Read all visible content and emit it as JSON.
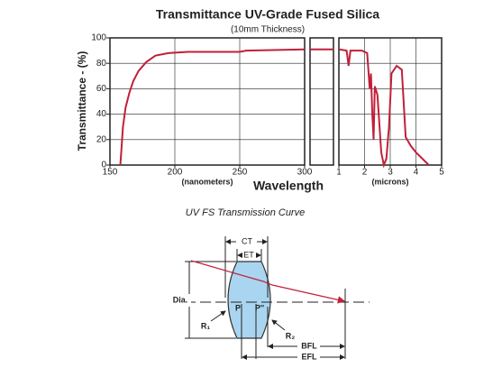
{
  "chart_data": {
    "type": "line",
    "title": "Transmittance UV-Grade Fused Silica",
    "subtitle": "(10mm Thickness)",
    "ylabel": "Transmittance - (%)",
    "xlabel": "Wavelength",
    "ylim": [
      0,
      100
    ],
    "yticks": [
      0,
      20,
      40,
      60,
      80,
      100
    ],
    "grid": true,
    "color": "#c0203a",
    "panels": [
      {
        "xunit": "(nanometers)",
        "xlim": [
          150,
          300
        ],
        "xticks": [
          150,
          200,
          250,
          300
        ],
        "x": [
          158,
          159,
          160,
          162,
          165,
          168,
          172,
          178,
          185,
          195,
          210,
          250,
          255,
          300
        ],
        "values": [
          0,
          15,
          30,
          45,
          57,
          66,
          74,
          81,
          86,
          88,
          89,
          89,
          90,
          91
        ]
      },
      {
        "values": [
          91,
          91,
          91,
          91
        ]
      },
      {
        "xunit": "(microns)",
        "xlim": [
          1,
          5
        ],
        "xticks": [
          1,
          2,
          3,
          4,
          5
        ],
        "x": [
          1.0,
          1.3,
          1.38,
          1.45,
          1.9,
          2.1,
          2.2,
          2.25,
          2.3,
          2.35,
          2.4,
          2.5,
          2.65,
          2.75,
          2.85,
          2.95,
          3.05,
          3.25,
          3.45,
          3.6,
          3.8,
          4.0,
          4.5
        ],
        "values": [
          91,
          90,
          78,
          90,
          90,
          88,
          60,
          72,
          40,
          20,
          62,
          55,
          10,
          0,
          5,
          30,
          72,
          78,
          75,
          22,
          15,
          10,
          0
        ]
      }
    ]
  },
  "caption": "UV FS Transmission Curve",
  "diagram": {
    "ct": "CT",
    "et": "ET",
    "dia": "Dia.",
    "p": "P",
    "p2": "P''",
    "r1": "R₁",
    "r2": "R₂",
    "bfl": "BFL",
    "efl": "EFL"
  }
}
